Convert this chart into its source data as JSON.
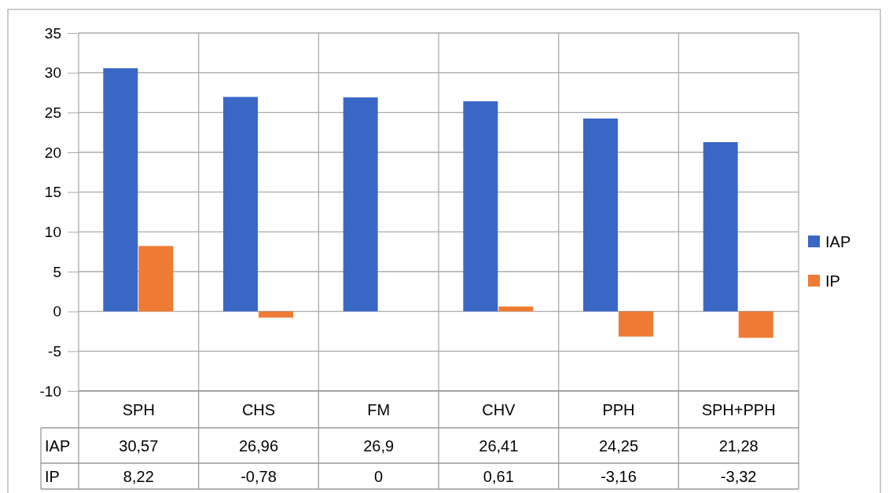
{
  "chart_data": {
    "type": "bar",
    "categories": [
      "SPH",
      "CHS",
      "FM",
      "CHV",
      "PPH",
      "SPH+PPH"
    ],
    "series": [
      {
        "name": "IAP",
        "color": "#3a67c6",
        "values": [
          30.57,
          26.96,
          26.9,
          26.41,
          24.25,
          21.28
        ],
        "value_labels": [
          "30,57",
          "26,96",
          "26,9",
          "26,41",
          "24,25",
          "21,28"
        ]
      },
      {
        "name": "IP",
        "color": "#ee7a33",
        "values": [
          8.22,
          -0.78,
          0,
          0.61,
          -3.16,
          -3.32
        ],
        "value_labels": [
          "8,22",
          "-0,78",
          "0",
          "0,61",
          "-3,16",
          "-3,32"
        ]
      }
    ],
    "ylim": [
      -10,
      35
    ],
    "yticks": [
      -10,
      -5,
      0,
      5,
      10,
      15,
      20,
      25,
      30,
      35
    ],
    "grid": true,
    "legend": "right"
  }
}
